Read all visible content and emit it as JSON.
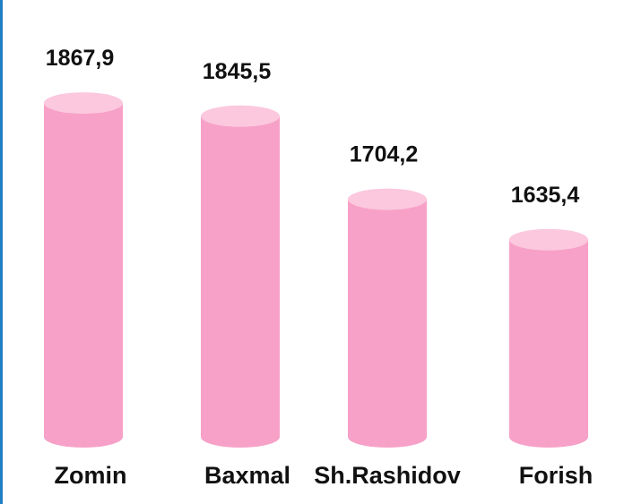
{
  "chart_data": {
    "type": "bar",
    "categories": [
      "Zomin",
      "Baxmal",
      "Sh.Rashidov",
      "Forish"
    ],
    "values": [
      1867.9,
      1845.5,
      1704.2,
      1635.4
    ],
    "value_labels": [
      "1867,9",
      "1845,5",
      "1704,2",
      "1635,4"
    ],
    "color": "#f7a1c8",
    "ylim": [
      1300,
      1900
    ]
  }
}
